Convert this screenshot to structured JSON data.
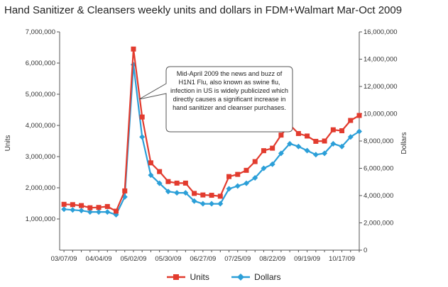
{
  "chart_data": {
    "type": "line",
    "title": "Hand Sanitizer & Cleansers weekly units and dollars in FDM+Walmart Mar-Oct 2009",
    "ylabel": "Units",
    "y2label": "Dollars",
    "ylim": [
      0,
      7000000
    ],
    "y2lim": [
      0,
      16000000
    ],
    "yticks": [
      "1,000,000",
      "2,000,000",
      "3,000,000",
      "4,000,000",
      "5,000,000",
      "6,000,000",
      "7,000,000"
    ],
    "y2ticks": [
      "0",
      "2,000,000",
      "4,000,000",
      "6,000,000",
      "8,000,000",
      "10,000,000",
      "12,000,000",
      "14,000,000",
      "16,000,000"
    ],
    "xtick_labels": [
      "03/07/09",
      "04/04/09",
      "05/02/09",
      "05/30/09",
      "06/27/09",
      "07/25/09",
      "08/22/09",
      "09/19/09",
      "10/17/09"
    ],
    "x": [
      "03/07/09",
      "03/14/09",
      "03/21/09",
      "03/28/09",
      "04/04/09",
      "04/11/09",
      "04/18/09",
      "04/25/09",
      "05/02/09",
      "05/09/09",
      "05/16/09",
      "05/23/09",
      "05/30/09",
      "06/06/09",
      "06/13/09",
      "06/20/09",
      "06/27/09",
      "07/04/09",
      "07/11/09",
      "07/18/09",
      "07/25/09",
      "08/01/09",
      "08/08/09",
      "08/15/09",
      "08/22/09",
      "08/29/09",
      "09/05/09",
      "09/12/09",
      "09/19/09",
      "09/26/09",
      "10/03/09",
      "10/10/09",
      "10/17/09",
      "10/24/09",
      "10/31/09"
    ],
    "series": [
      {
        "name": "Units",
        "color": "#e23b2e",
        "axis": "left",
        "marker": "square",
        "values": [
          1470000,
          1460000,
          1430000,
          1360000,
          1370000,
          1400000,
          1250000,
          1900000,
          6450000,
          4270000,
          2800000,
          2520000,
          2200000,
          2150000,
          2150000,
          1820000,
          1770000,
          1760000,
          1730000,
          2360000,
          2430000,
          2560000,
          2840000,
          3190000,
          3270000,
          3690000,
          4020000,
          3740000,
          3660000,
          3490000,
          3500000,
          3860000,
          3830000,
          4160000,
          4320000
        ]
      },
      {
        "name": "Dollars",
        "color": "#2b9fd8",
        "axis": "right",
        "marker": "diamond",
        "values": [
          3000000,
          2950000,
          2900000,
          2800000,
          2800000,
          2800000,
          2600000,
          3900000,
          13600000,
          8300000,
          5500000,
          4900000,
          4300000,
          4200000,
          4200000,
          3600000,
          3400000,
          3400000,
          3400000,
          4500000,
          4700000,
          4900000,
          5300000,
          6000000,
          6300000,
          7100000,
          7800000,
          7600000,
          7300000,
          7000000,
          7100000,
          7800000,
          7600000,
          8300000,
          8700000
        ]
      }
    ],
    "annotation": "Mid-April 2009 the news and buzz of H1N1 Flu, also known as swine flu, infection in US is widely publicized which directly causes a significant increase in hand sanitizer and cleanser purchases.",
    "legend_position": "bottom",
    "grid": false
  }
}
